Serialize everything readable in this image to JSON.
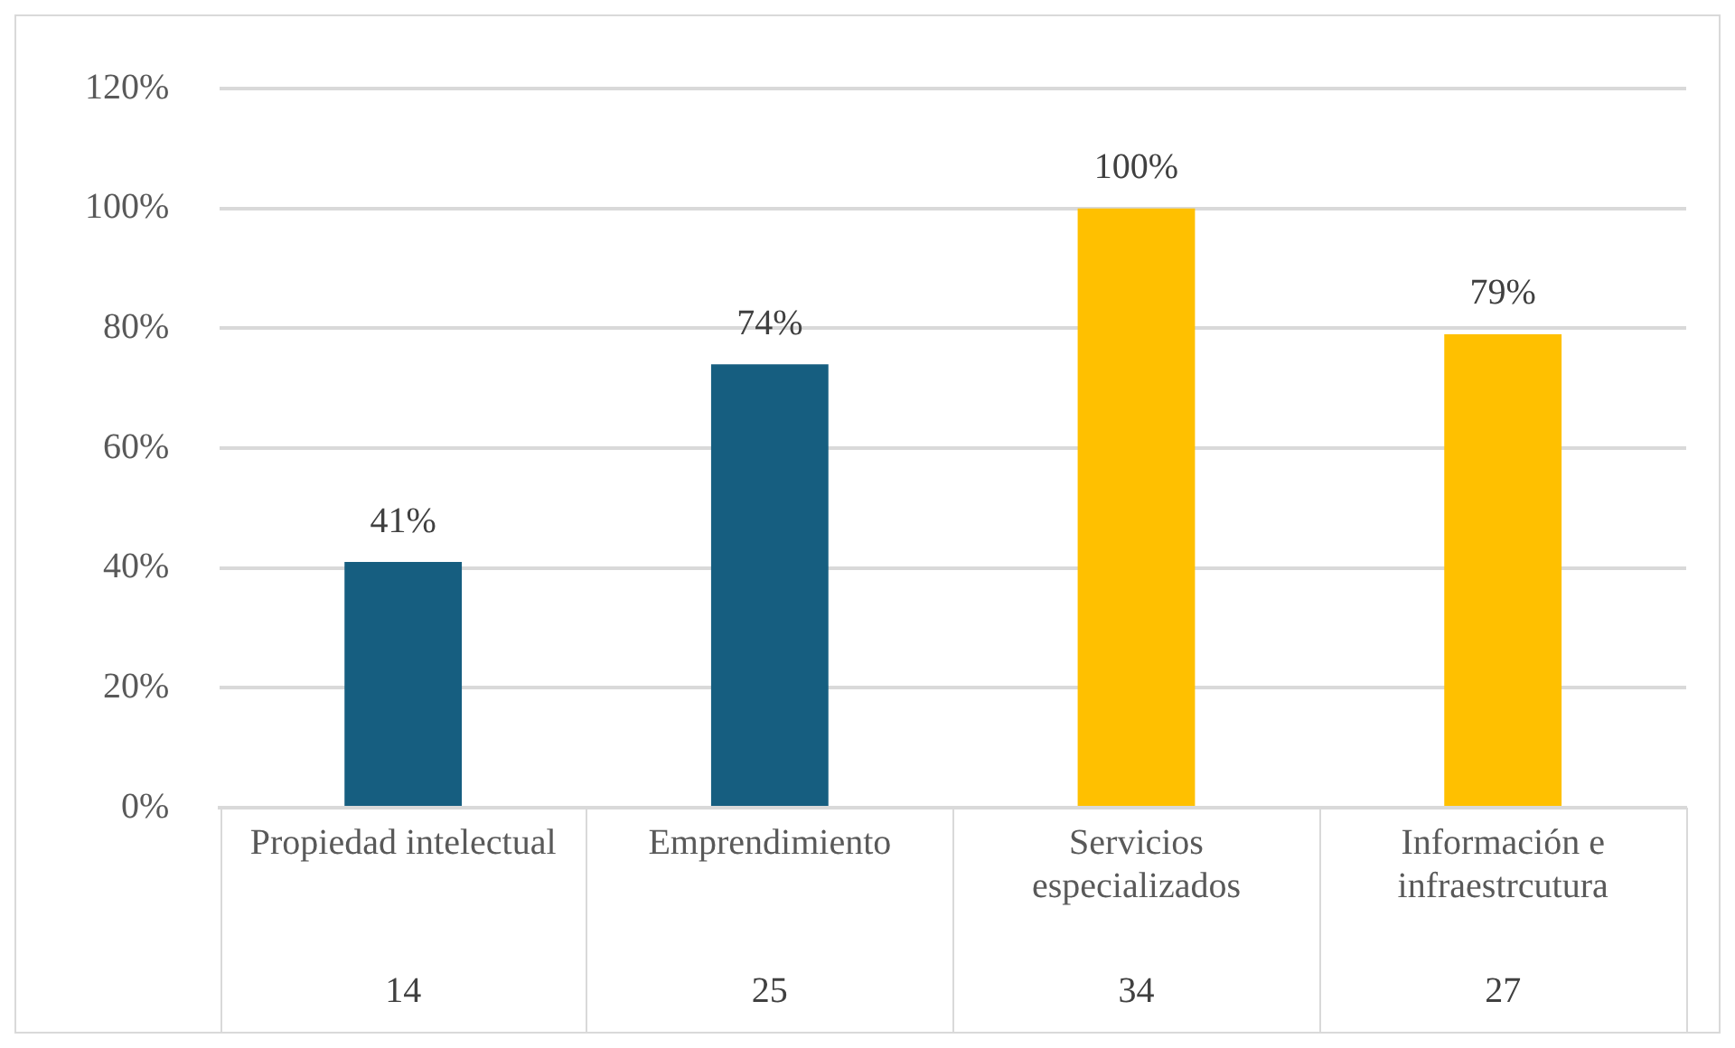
{
  "chart_data": {
    "type": "bar",
    "categories": [
      "Propiedad intelectual",
      "Emprendimiento",
      "Servicios especializados",
      "Información e infraestrcutura"
    ],
    "values": [
      41,
      74,
      100,
      79
    ],
    "value_labels": [
      "41%",
      "74%",
      "100%",
      "79%"
    ],
    "colors": [
      "#165e80",
      "#165e80",
      "#ffc000",
      "#ffc000"
    ],
    "ylim": [
      0,
      120
    ],
    "yticks": [
      {
        "value": 0,
        "label": "0%"
      },
      {
        "value": 20,
        "label": "20%"
      },
      {
        "value": 40,
        "label": "40%"
      },
      {
        "value": 60,
        "label": "60%"
      },
      {
        "value": 80,
        "label": "80%"
      },
      {
        "value": 100,
        "label": "100%"
      },
      {
        "value": 120,
        "label": "120%"
      }
    ],
    "grid": "y",
    "legend": false,
    "annotations": [
      "14",
      "25",
      "34",
      "27"
    ]
  }
}
